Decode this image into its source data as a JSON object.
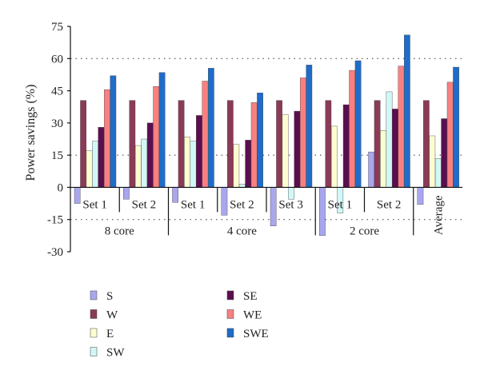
{
  "chart_data": {
    "type": "bar",
    "title": "",
    "ylabel": "Power savings (%)",
    "xlabel": "",
    "ylim": [
      -30,
      75
    ],
    "yticks": [
      -30,
      -15,
      0,
      15,
      30,
      45,
      60,
      75
    ],
    "grid": "dotted horizontal at 15, 60 and -15",
    "legend_position": "bottom",
    "categories": [
      "Set 1",
      "Set 2",
      "Set 1",
      "Set 2",
      "Set 3",
      "Set 1",
      "Set 2",
      "Average"
    ],
    "groups": [
      {
        "label": "8 core",
        "span": [
          0,
          1
        ]
      },
      {
        "label": "4 core",
        "span": [
          2,
          4
        ]
      },
      {
        "label": "2 core",
        "span": [
          5,
          6
        ]
      }
    ],
    "series": [
      {
        "name": "S",
        "color": "#a9a6ee",
        "values": [
          -7.5,
          -5.5,
          -7,
          -13,
          -18,
          -22.5,
          16.5,
          -8
        ]
      },
      {
        "name": "W",
        "color": "#8b3a58",
        "values": [
          40.5,
          40.5,
          40.5,
          40.5,
          40.5,
          40.5,
          40.5,
          40.5
        ]
      },
      {
        "name": "E",
        "color": "#fdfdd2",
        "values": [
          17,
          19.5,
          23.5,
          20,
          34,
          28.5,
          26.5,
          24
        ]
      },
      {
        "name": "SW",
        "color": "#d2f7f7",
        "values": [
          21.5,
          22.5,
          21.5,
          1.5,
          -5.5,
          -12,
          44.5,
          13.5
        ]
      },
      {
        "name": "SE",
        "color": "#5b0e4f",
        "values": [
          28,
          30,
          33.5,
          22,
          35.5,
          38.5,
          36.5,
          32
        ]
      },
      {
        "name": "WE",
        "color": "#f98080",
        "values": [
          45.5,
          47,
          49.5,
          39.5,
          51,
          54.5,
          56.5,
          49
        ]
      },
      {
        "name": "SWE",
        "color": "#1f6cc9",
        "values": [
          52,
          53.5,
          55.5,
          44,
          57,
          59,
          71,
          56
        ]
      }
    ]
  }
}
